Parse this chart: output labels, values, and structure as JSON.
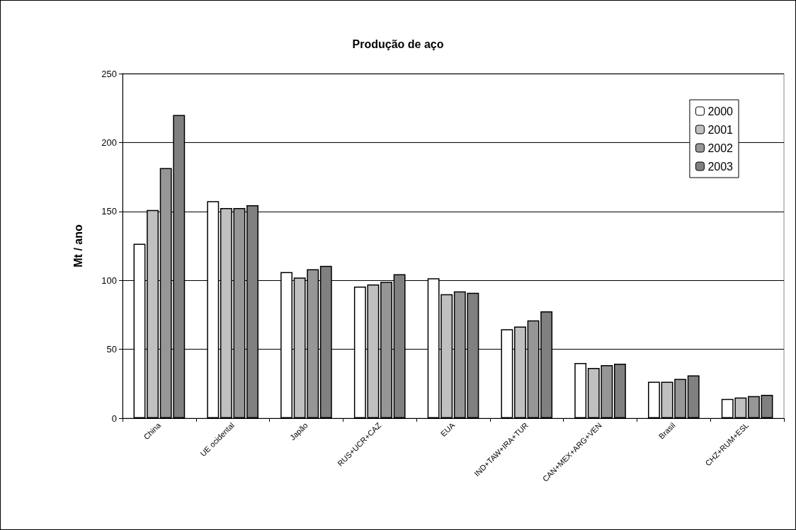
{
  "chart_data": {
    "type": "bar",
    "title": "Produção de aço",
    "ylabel": "Mt / ano",
    "categories": [
      "China",
      "UE ocidental",
      "Japão",
      "RUS+UCR+CAZ",
      "EUA",
      "IND+TAW+IRA+TUR",
      "CAN+MEX+ARG+VEN",
      "Brasil",
      "CHZ+RUM+ESL"
    ],
    "series": [
      {
        "name": "2000",
        "color": "#ffffff",
        "values": [
          126.5,
          157.5,
          106,
          95.5,
          101.5,
          64.5,
          40,
          26.5,
          14
        ]
      },
      {
        "name": "2001",
        "color": "#c0c0c0",
        "values": [
          151,
          152.5,
          102,
          97,
          90,
          66.5,
          36.5,
          26.5,
          15
        ]
      },
      {
        "name": "2002",
        "color": "#969696",
        "values": [
          181.5,
          152.5,
          108,
          99,
          92,
          71,
          38.5,
          28.5,
          16
        ]
      },
      {
        "name": "2003",
        "color": "#808080",
        "values": [
          220,
          154.5,
          110.5,
          104.5,
          91,
          77.5,
          39.5,
          31,
          17
        ]
      }
    ],
    "ylim": [
      0,
      250
    ],
    "yticks": [
      0,
      50,
      100,
      150,
      200,
      250
    ],
    "grid": "y",
    "legend": "top right"
  }
}
